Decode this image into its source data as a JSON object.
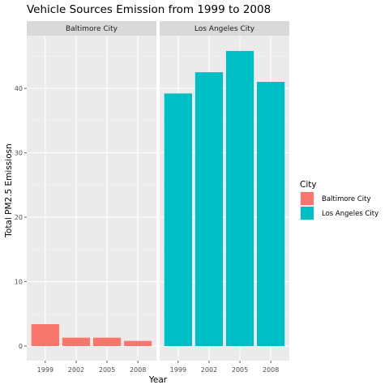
{
  "chart_data": {
    "type": "bar",
    "title": "Vehicle Sources Emission from 1999 to 2008",
    "xlabel": "Year",
    "ylabel": "Total PM2.5 Emissiosn",
    "ylim": [
      0,
      47
    ],
    "yticks": [
      0,
      10,
      20,
      30,
      40
    ],
    "grid": true,
    "categories": [
      "1999",
      "2002",
      "2005",
      "2008"
    ],
    "legend": {
      "title": "City",
      "position": "right",
      "entries": [
        {
          "name": "Baltimore City",
          "color": "#F8766D"
        },
        {
          "name": "Los Angeles City",
          "color": "#00BFC4"
        }
      ]
    },
    "facets": [
      {
        "name": "Baltimore City",
        "color": "#F8766D",
        "values": [
          3.4,
          1.3,
          1.3,
          0.8
        ]
      },
      {
        "name": "Los Angeles City",
        "color": "#00BFC4",
        "values": [
          39.2,
          42.5,
          45.8,
          41.0
        ]
      }
    ]
  }
}
